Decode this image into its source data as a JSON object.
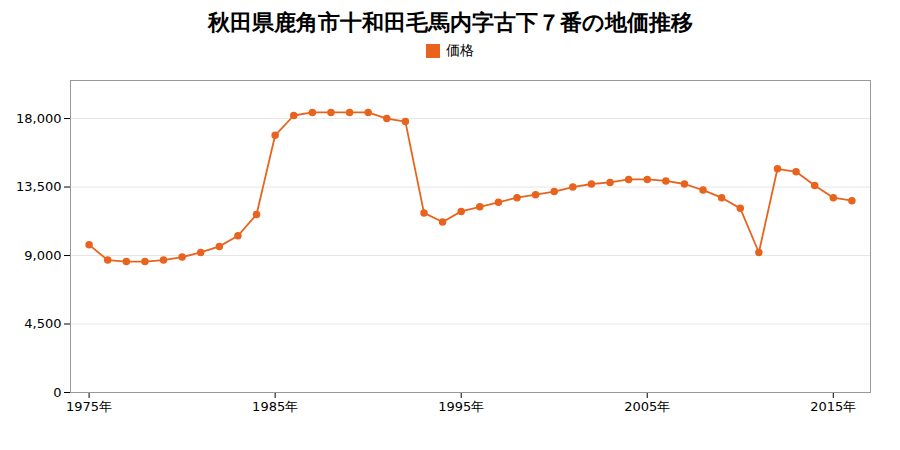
{
  "chart_data": {
    "type": "line",
    "title": "秋田県鹿角市十和田毛馬内字古下７番の地価推移",
    "x": [
      1975,
      1976,
      1977,
      1978,
      1979,
      1980,
      1981,
      1982,
      1983,
      1984,
      1985,
      1986,
      1987,
      1988,
      1989,
      1990,
      1991,
      1992,
      1993,
      1994,
      1995,
      1996,
      1997,
      1998,
      1999,
      2000,
      2001,
      2002,
      2003,
      2004,
      2005,
      2006,
      2007,
      2008,
      2009,
      2010,
      2011,
      2012,
      2013,
      2014,
      2015,
      2016
    ],
    "series": [
      {
        "name": "価格",
        "color": "#e8641e",
        "marker": "circle",
        "values": [
          9700,
          8700,
          8600,
          8600,
          8700,
          8900,
          9200,
          9600,
          10300,
          11700,
          16900,
          18200,
          18400,
          18400,
          18400,
          18400,
          18000,
          17800,
          11800,
          11200,
          11900,
          12200,
          12500,
          12800,
          13000,
          13200,
          13500,
          13700,
          13800,
          14000,
          14000,
          13900,
          13700,
          13300,
          12800,
          12100,
          9200,
          14700,
          14500,
          13600,
          12800,
          12600
        ]
      }
    ],
    "xlim": [
      1974,
      2017
    ],
    "xticks": [
      {
        "value": 1975,
        "label": "1975年"
      },
      {
        "value": 1985,
        "label": "1985年"
      },
      {
        "value": 1995,
        "label": "1995年"
      },
      {
        "value": 2005,
        "label": "2005年"
      },
      {
        "value": 2015,
        "label": "2015年"
      }
    ],
    "ylim": [
      0,
      20500
    ],
    "yticks": [
      0,
      {
        "value": 4500,
        "label": "4,500"
      },
      {
        "value": 9000,
        "label": "9,000"
      },
      {
        "value": 13500,
        "label": "13,500"
      },
      {
        "value": 18000,
        "label": "18,000"
      }
    ],
    "grid": true,
    "legend": "top"
  }
}
